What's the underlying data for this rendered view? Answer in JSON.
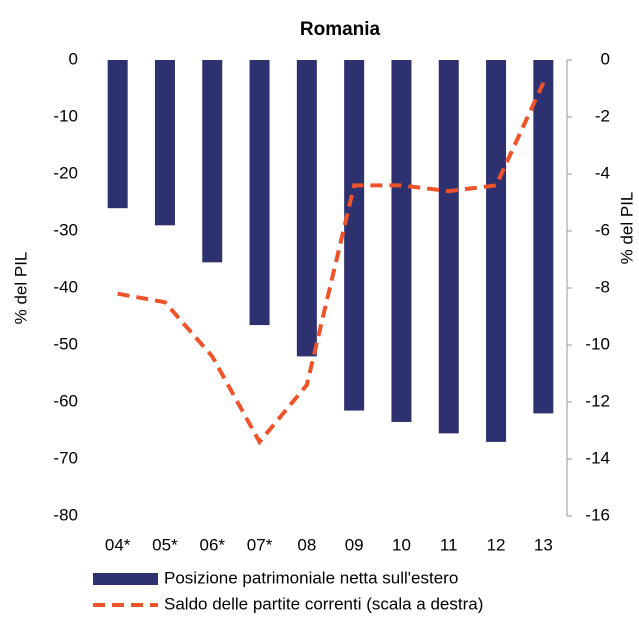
{
  "chart_data": {
    "type": "bar-line",
    "title": "Romania",
    "y_label": "% del PIL",
    "y2_label": "% del PIL",
    "categories": [
      "04*",
      "05*",
      "06*",
      "07*",
      "08",
      "09",
      "10",
      "11",
      "12",
      "13"
    ],
    "series": [
      {
        "name": "Posizione patrimoniale netta sull'estero",
        "type": "bar",
        "color": "#2e3170",
        "values": [
          -26,
          -29,
          -35.5,
          -46.5,
          -52,
          -61.5,
          -63.5,
          -65.5,
          -67,
          -62
        ]
      },
      {
        "name": "Saldo delle partite correnti (scala a destra)",
        "type": "line",
        "axis": "y2",
        "color": "#f0522a",
        "dashed": true,
        "values": [
          -8.2,
          -8.5,
          -10.4,
          -13.4,
          -11.4,
          -4.4,
          -4.4,
          -4.6,
          -4.4,
          -0.8
        ]
      }
    ],
    "ylim": [
      -80,
      0
    ],
    "yticks": [
      0,
      -10,
      -20,
      -30,
      -40,
      -50,
      -60,
      -70,
      -80
    ],
    "y2lim": [
      -16,
      0
    ],
    "y2ticks": [
      0,
      -2,
      -4,
      -6,
      -8,
      -10,
      -12,
      -14,
      -16
    ],
    "legend": "bottom"
  }
}
